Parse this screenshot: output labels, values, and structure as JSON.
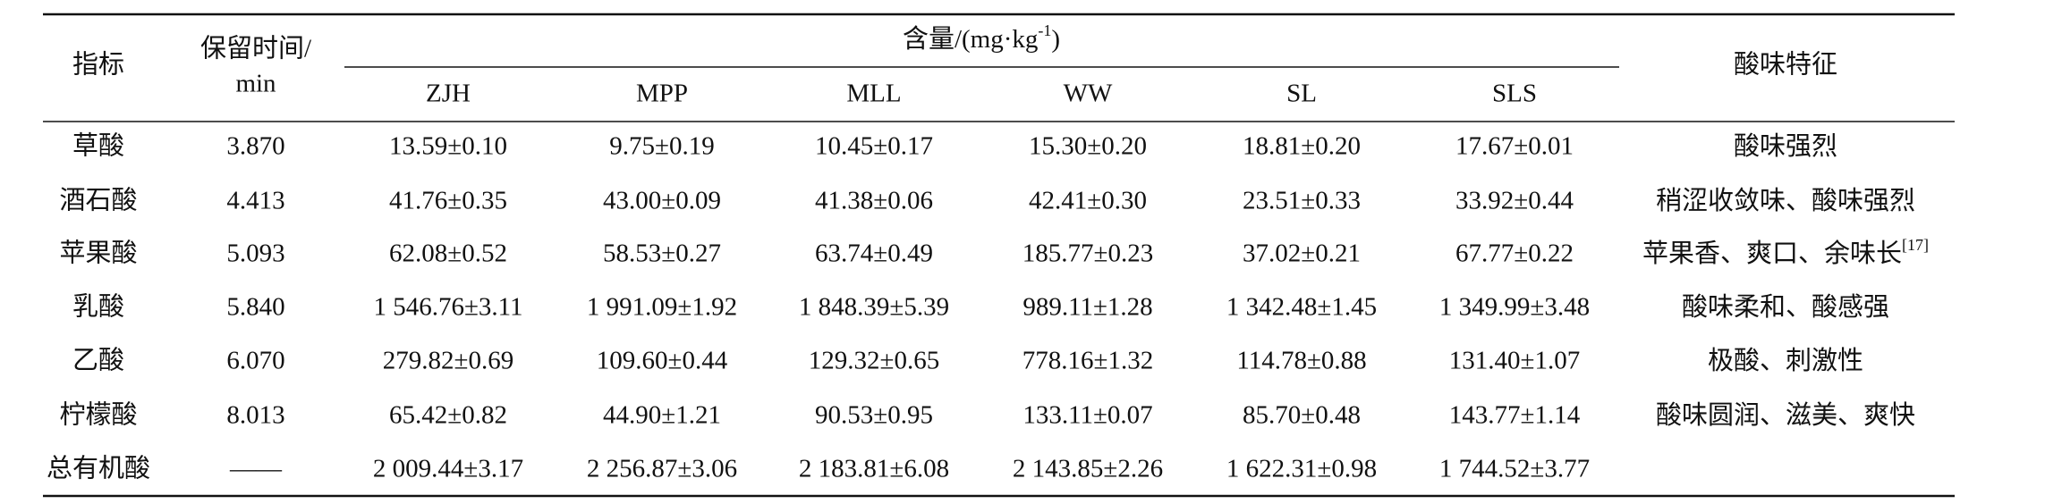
{
  "table": {
    "header": {
      "indicator": "指标",
      "retention_time": [
        "保留时间/",
        "min"
      ],
      "content": {
        "text": "含量/(mg·kg",
        "sup": "-1",
        "tail": ")"
      },
      "samples": [
        "ZJH",
        "MPP",
        "MLL",
        "WW",
        "SL",
        "SLS"
      ],
      "feature": "酸味特征"
    },
    "rows": [
      [
        "草酸",
        "3.870",
        "13.59±0.10",
        "9.75±0.19",
        "10.45±0.17",
        "15.30±0.20",
        "18.81±0.20",
        "17.67±0.01",
        {
          "text": "酸味强烈"
        }
      ],
      [
        "酒石酸",
        "4.413",
        "41.76±0.35",
        "43.00±0.09",
        "41.38±0.06",
        "42.41±0.30",
        "23.51±0.33",
        "33.92±0.44",
        {
          "text": "稍涩收敛味、酸味强烈"
        }
      ],
      [
        "苹果酸",
        "5.093",
        "62.08±0.52",
        "58.53±0.27",
        "63.74±0.49",
        "185.77±0.23",
        "37.02±0.21",
        "67.77±0.22",
        {
          "text": "苹果香、爽口、余味长",
          "sup": "[17]"
        }
      ],
      [
        "乳酸",
        "5.840",
        "1 546.76±3.11",
        "1 991.09±1.92",
        "1 848.39±5.39",
        "989.11±1.28",
        "1 342.48±1.45",
        "1 349.99±3.48",
        {
          "text": "酸味柔和、酸感强"
        }
      ],
      [
        "乙酸",
        "6.070",
        "279.82±0.69",
        "109.60±0.44",
        "129.32±0.65",
        "778.16±1.32",
        "114.78±0.88",
        "131.40±1.07",
        {
          "text": "极酸、刺激性"
        }
      ],
      [
        "柠檬酸",
        "8.013",
        "65.42±0.82",
        "44.90±1.21",
        "90.53±0.95",
        "133.11±0.07",
        "85.70±0.48",
        "143.77±1.14",
        {
          "text": "酸味圆润、滋美、爽快"
        }
      ],
      [
        "总有机酸",
        "——",
        "2 009.44±3.17",
        "2 256.87±3.06",
        "2 183.81±6.08",
        "2 143.85±2.26",
        "1 622.31±0.98",
        "1 744.52±3.77",
        {
          "text": ""
        }
      ]
    ]
  }
}
